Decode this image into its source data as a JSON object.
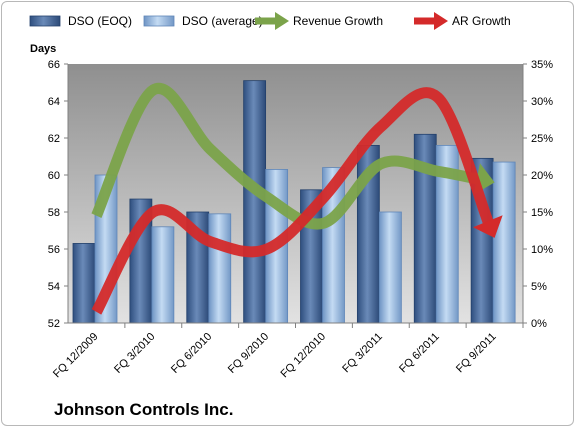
{
  "company": "Johnson Controls Inc.",
  "chart_data": {
    "type": "bar",
    "categories": [
      "FQ 12/2009",
      "FQ 3/2010",
      "FQ 6/2010",
      "FQ 9/2010",
      "FQ 12/2010",
      "FQ 3/2011",
      "FQ 6/2011",
      "FQ 9/2011"
    ],
    "series": [
      {
        "name": "DSO (EOQ)",
        "type": "bar",
        "axis": "left",
        "color": "#4a6a9a",
        "values": [
          56.3,
          58.7,
          58.0,
          65.1,
          59.2,
          61.6,
          62.2,
          60.9
        ]
      },
      {
        "name": "DSO (average)",
        "type": "bar",
        "axis": "left",
        "color": "#9bbbe0",
        "values": [
          60.0,
          57.2,
          57.9,
          60.3,
          60.4,
          58.0,
          61.6,
          60.7
        ]
      },
      {
        "name": "Revenue Growth",
        "type": "line",
        "axis": "right",
        "color": "#7ba34a",
        "values": [
          0.145,
          0.315,
          0.235,
          0.17,
          0.135,
          0.215,
          0.205,
          0.19
        ]
      },
      {
        "name": "AR Growth",
        "type": "line",
        "axis": "right",
        "color": "#d42a2a",
        "values": [
          0.015,
          0.15,
          0.11,
          0.1,
          0.17,
          0.265,
          0.305,
          0.115
        ]
      }
    ],
    "ylabel_left": "Days",
    "ylim_left": [
      52,
      66
    ],
    "yticks_left": [
      "52",
      "54",
      "56",
      "58",
      "60",
      "62",
      "64",
      "66"
    ],
    "ylim_right": [
      0,
      0.35
    ],
    "yticks_right": [
      "0%",
      "5%",
      "10%",
      "15%",
      "20%",
      "25%",
      "30%",
      "35%"
    ],
    "legend": "top",
    "grid": false
  }
}
